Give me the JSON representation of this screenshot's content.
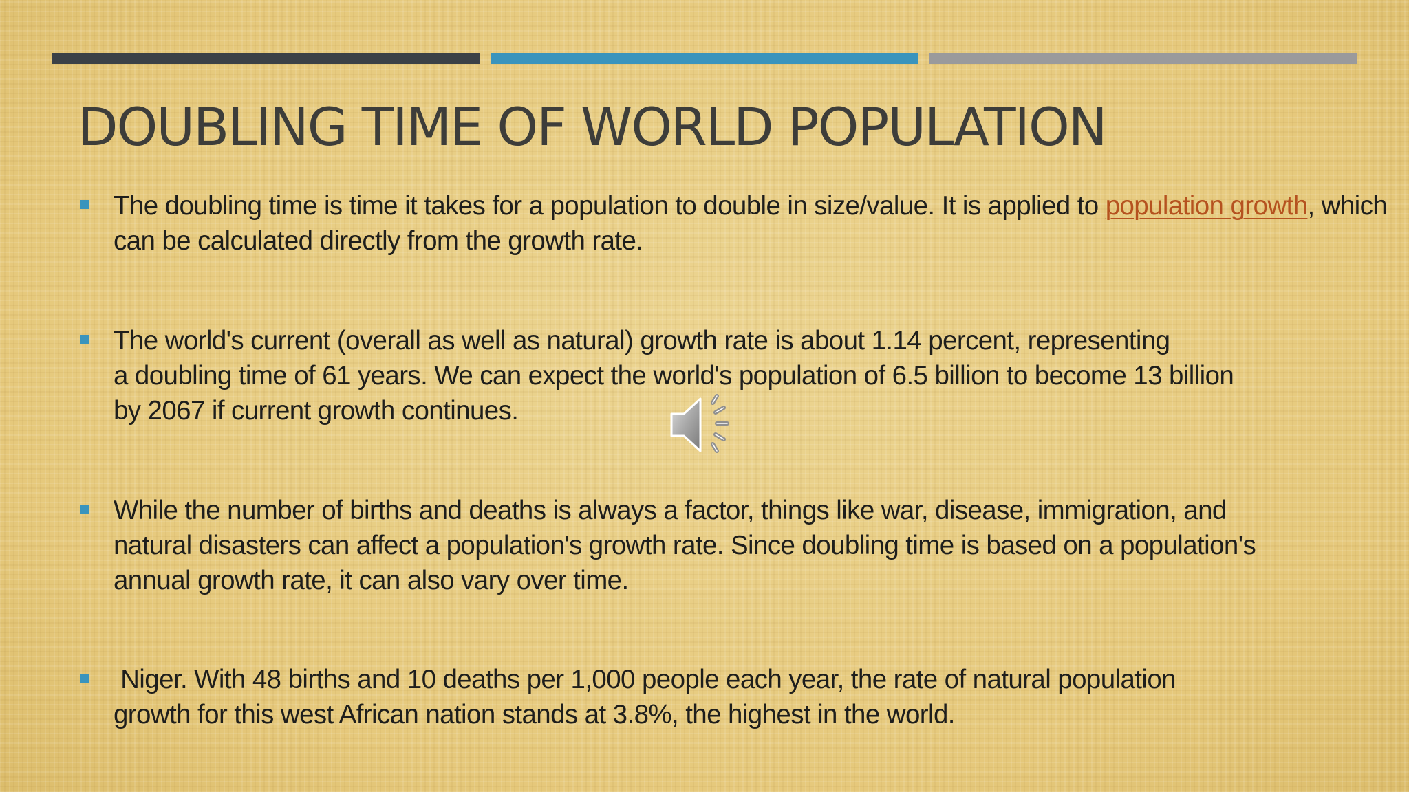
{
  "slide": {
    "title": "DOUBLING TIME OF WORLD POPULATION",
    "accent_colors": [
      "#3b4147",
      "#3a94bd",
      "#9a9a9c"
    ],
    "bullets": [
      {
        "before_link": "The doubling time is time it takes for a population to double in size/value. It is applied to ",
        "link_text": "population growth",
        "after_link": ",  which can be calculated directly from the growth rate."
      },
      {
        "line1": "The world's current (overall as well as natural) growth rate is about 1.14 percent, representing",
        "line2": "a doubling time of 61 years. We can expect the world's population of 6.5 billion to become 13 billion",
        "line3": "by 2067 if current growth continues."
      },
      {
        "line1": "While the number of births and deaths is always a factor, things like war, disease, immigration, and",
        "line2": "natural disasters can affect a population's growth rate. Since doubling time is based on a population's",
        "line3": "annual growth rate, it can also vary over time."
      },
      {
        "line1": " Niger. With 48 births and 10 deaths per 1,000 people each year, the rate of natural population",
        "line2": "growth for this west African nation stands at 3.8%, the highest in the world."
      }
    ],
    "audio_icon": "speaker-icon"
  }
}
